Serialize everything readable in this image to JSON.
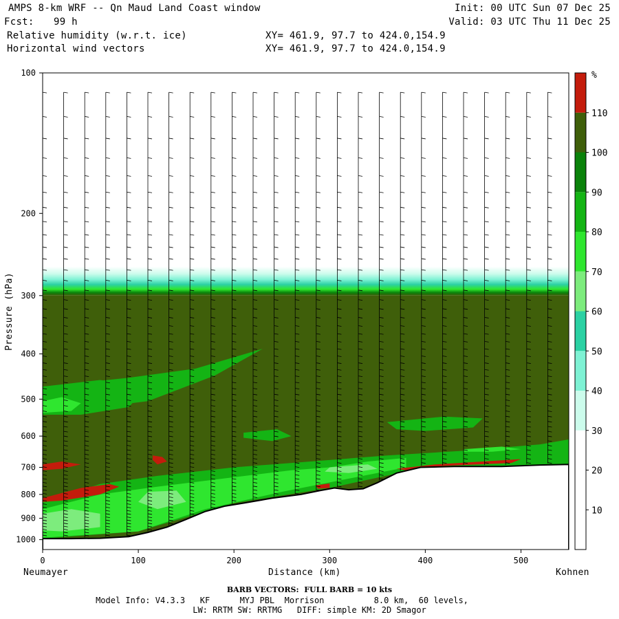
{
  "header": {
    "title_left": "AMPS 8-km WRF -- Qn Maud Land Coast window",
    "fcst_label": "Fcst:",
    "fcst_value": "99 h",
    "field1": "Relative humidity (w.r.t. ice)",
    "field2": "Horizontal wind vectors",
    "xy1": "XY= 461.9, 97.7 to 424.0,154.9",
    "xy2": "XY= 461.9, 97.7 to 424.0,154.9",
    "init": "Init: 00 UTC Sun 07 Dec 25",
    "valid": "Valid: 03 UTC Thu 11 Dec 25"
  },
  "footer": {
    "barb_note": "BARB VECTORS:  FULL BARB = 10 kts",
    "model_info": "Model Info: V4.3.3   KF      MYJ PBL  Morrison          8.0 km,  60 levels,",
    "physics": "LW: RRTM SW: RRTMG   DIFF: simple KM: 2D Smagor"
  },
  "chart_data": {
    "type": "heatmap",
    "ylabel": "Pressure (hPa)",
    "xlabel": "Distance (km)",
    "x_start_label": "Neumayer",
    "x_end_label": "Kohnen",
    "x_range": [
      0,
      550
    ],
    "y_range": [
      100,
      1050
    ],
    "y_scale": "log",
    "x_ticks": [
      "0",
      "100",
      "200",
      "300",
      "400",
      "500"
    ],
    "y_ticks": [
      "100",
      "200",
      "300",
      "400",
      "500",
      "600",
      "700",
      "800",
      "900",
      "1000"
    ],
    "x_tick_values": [
      0,
      100,
      200,
      300,
      400,
      500
    ],
    "y_tick_values": [
      100,
      200,
      300,
      400,
      500,
      600,
      700,
      800,
      900,
      1000
    ],
    "colorbar": {
      "unit": "%",
      "labels": [
        "10",
        "20",
        "30",
        "40",
        "50",
        "60",
        "70",
        "80",
        "90",
        "100",
        "110"
      ],
      "levels": [
        10,
        20,
        30,
        40,
        50,
        60,
        70,
        80,
        90,
        100,
        110
      ],
      "colors": [
        "#ffffff",
        "#ffffff",
        "#ffffff",
        "#ccfcec",
        "#7ef2d4",
        "#2bd1a3",
        "#7dec7d",
        "#2fe62f",
        "#14b414",
        "#0a820a",
        "#3f5f0a",
        "#c41c0c"
      ]
    },
    "terrain_profile_km_hpa": [
      [
        0,
        995
      ],
      [
        30,
        995
      ],
      [
        60,
        993
      ],
      [
        90,
        985
      ],
      [
        110,
        965
      ],
      [
        130,
        940
      ],
      [
        150,
        905
      ],
      [
        170,
        870
      ],
      [
        190,
        848
      ],
      [
        210,
        835
      ],
      [
        240,
        815
      ],
      [
        270,
        800
      ],
      [
        290,
        785
      ],
      [
        305,
        775
      ],
      [
        320,
        782
      ],
      [
        335,
        778
      ],
      [
        350,
        755
      ],
      [
        370,
        720
      ],
      [
        395,
        700
      ],
      [
        430,
        697
      ],
      [
        480,
        697
      ],
      [
        520,
        692
      ],
      [
        550,
        690
      ]
    ],
    "annotations": {
      "rh_min_layer_hpa": [
        100,
        260
      ],
      "rh_transition_hpa": [
        260,
        300
      ],
      "rh_moist_layer_hpa": [
        300,
        995
      ]
    },
    "barb_columns_km": [
      0,
      22,
      44,
      66,
      88,
      110,
      132,
      154,
      176,
      198,
      220,
      242,
      264,
      286,
      308,
      330,
      352,
      374,
      396,
      418,
      440,
      462,
      484,
      506,
      528,
      550
    ]
  }
}
